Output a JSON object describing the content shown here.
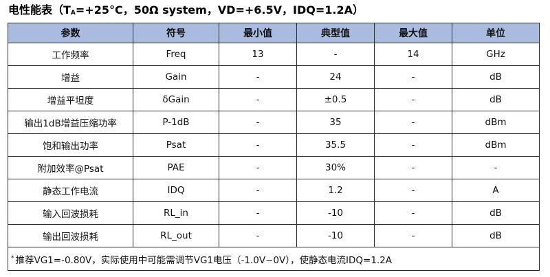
{
  "title": {
    "prefix": "电性能表（T",
    "sub": "A",
    "suffix": "=+25°C，50Ω system，VD=+6.5V，IDQ=1.2A）"
  },
  "table": {
    "headers": [
      "参数",
      "符号",
      "最小值",
      "典型值",
      "最大值",
      "单位"
    ],
    "header_bg": "#a9bbde",
    "rows": [
      [
        "工作频率",
        "Freq",
        "13",
        "-",
        "14",
        "GHz"
      ],
      [
        "增益",
        "Gain",
        "-",
        "24",
        "-",
        "dB"
      ],
      [
        "增益平坦度",
        "δGain",
        "-",
        "±0.5",
        "-",
        "dB"
      ],
      [
        "输出1dB增益压缩功率",
        "P-1dB",
        "-",
        "35",
        "-",
        "dBm"
      ],
      [
        "饱和输出功率",
        "Psat",
        "-",
        "35.5",
        "-",
        "dBm"
      ],
      [
        "附加效率@Psat",
        "PAE",
        "-",
        "30%",
        "-",
        "-"
      ],
      [
        "静态工作电流",
        "IDQ",
        "-",
        "1.2",
        "-",
        "A"
      ],
      [
        "输入回波损耗",
        "RL_in",
        "-",
        "-10",
        "-",
        "dB"
      ],
      [
        "输出回波损耗",
        "RL_out",
        "-",
        "-10",
        "-",
        "dB"
      ]
    ],
    "note_mark": "*",
    "note": "推荐VG1=-0.80V，实际使用中可能需调节VG1电压（-1.0V~0V），使静态电流IDQ=1.2A"
  }
}
